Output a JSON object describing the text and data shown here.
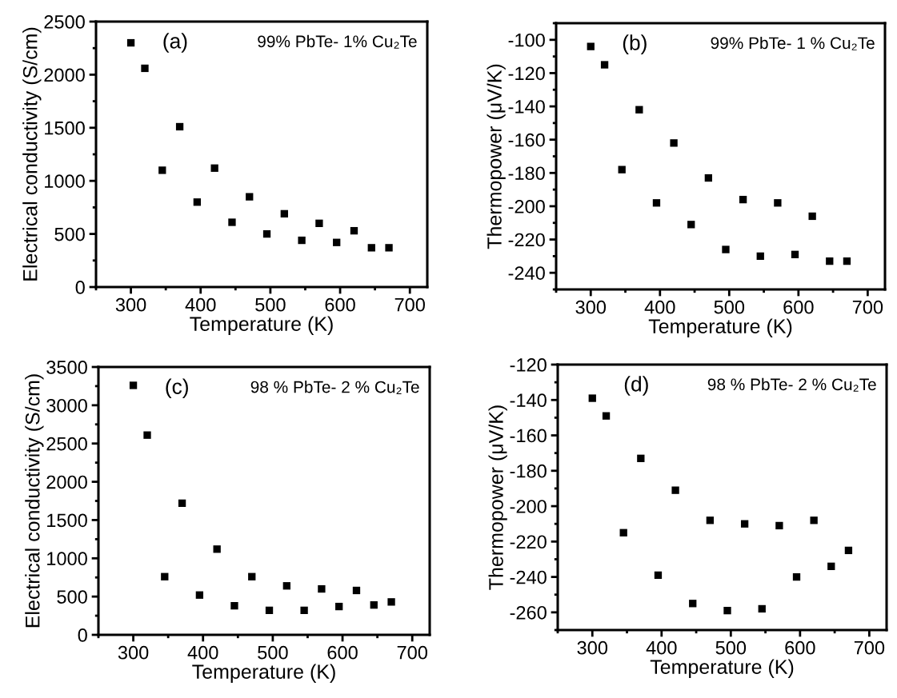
{
  "chart_data": [
    {
      "type": "scatter",
      "xlabel": "Temperature (K)",
      "ylabel": "Electrical conductivity (S/cm)",
      "annotations": [
        "(a)",
        "99% PbTe- 1% Cu₂Te"
      ],
      "marker": "square",
      "grid": false,
      "x": [
        300,
        320,
        345,
        370,
        395,
        420,
        445,
        470,
        495,
        520,
        545,
        570,
        595,
        620,
        645,
        670
      ],
      "series": [
        {
          "color": "#000000",
          "values": [
            2300,
            2060,
            1100,
            1510,
            800,
            1120,
            610,
            850,
            500,
            690,
            440,
            600,
            420,
            530,
            370,
            370
          ]
        }
      ],
      "xlim": [
        250,
        725
      ],
      "xticks": [
        300,
        400,
        500,
        600,
        700
      ],
      "ylim": [
        0,
        2500
      ],
      "yticks": [
        0,
        500,
        1000,
        1500,
        2000,
        2500
      ]
    },
    {
      "type": "scatter",
      "xlabel": "Temperature (K)",
      "ylabel": "Thermopower (μV/K)",
      "annotations": [
        "(b)",
        "99% PbTe- 1 % Cu₂Te"
      ],
      "marker": "square",
      "grid": false,
      "x": [
        300,
        320,
        345,
        370,
        395,
        420,
        445,
        470,
        495,
        520,
        545,
        570,
        595,
        620,
        645,
        670
      ],
      "series": [
        {
          "color": "#000000",
          "values": [
            -104,
            -115,
            -178,
            -142,
            -198,
            -162,
            -211,
            -183,
            -226,
            -196,
            -230,
            -198,
            -229,
            -206,
            -233,
            -233
          ]
        }
      ],
      "xlim": [
        250,
        725
      ],
      "xticks": [
        300,
        400,
        500,
        600,
        700
      ],
      "ylim": [
        -250,
        -90
      ],
      "yticks": [
        -240,
        -220,
        -200,
        -180,
        -160,
        -140,
        -120,
        -100
      ]
    },
    {
      "type": "scatter",
      "xlabel": "Temperature (K)",
      "ylabel": "Electrical conductivity (S/cm)",
      "annotations": [
        "(c)",
        "98 % PbTe- 2 % Cu₂Te"
      ],
      "marker": "square",
      "grid": false,
      "x": [
        300,
        320,
        345,
        370,
        395,
        420,
        445,
        470,
        495,
        520,
        545,
        570,
        595,
        620,
        645,
        670
      ],
      "series": [
        {
          "color": "#000000",
          "values": [
            3260,
            2610,
            760,
            1720,
            520,
            1120,
            380,
            760,
            320,
            640,
            320,
            600,
            370,
            580,
            390,
            430
          ]
        }
      ],
      "xlim": [
        250,
        725
      ],
      "xticks": [
        300,
        400,
        500,
        600,
        700
      ],
      "ylim": [
        0,
        3500
      ],
      "yticks": [
        0,
        500,
        1000,
        1500,
        2000,
        2500,
        3000,
        3500
      ]
    },
    {
      "type": "scatter",
      "xlabel": "Temperature (K)",
      "ylabel": "Thermopower (μV/K)",
      "annotations": [
        "(d)",
        "98 % PbTe- 2 % Cu₂Te"
      ],
      "marker": "square",
      "grid": false,
      "x": [
        300,
        320,
        345,
        370,
        395,
        420,
        445,
        470,
        495,
        520,
        545,
        570,
        595,
        620,
        645,
        670
      ],
      "series": [
        {
          "color": "#000000",
          "values": [
            -139,
            -149,
            -215,
            -173,
            -239,
            -191,
            -255,
            -208,
            -259,
            -210,
            -258,
            -211,
            -240,
            -208,
            -234,
            -225
          ]
        }
      ],
      "xlim": [
        250,
        725
      ],
      "xticks": [
        300,
        400,
        500,
        600,
        700
      ],
      "ylim": [
        -270,
        -120
      ],
      "yticks": [
        -260,
        -240,
        -220,
        -200,
        -180,
        -160,
        -140,
        -120
      ]
    }
  ]
}
